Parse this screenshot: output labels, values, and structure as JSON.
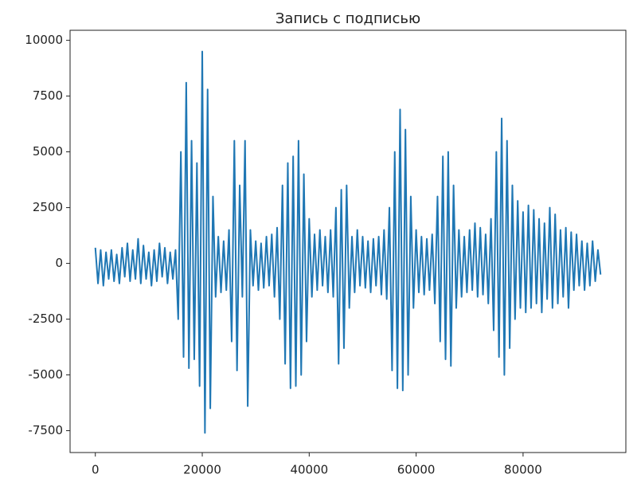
{
  "chart_data": {
    "type": "line",
    "title": "Запись с подписью",
    "x": [
      0,
      500,
      1000,
      1500,
      2000,
      2500,
      3000,
      3500,
      4000,
      4500,
      5000,
      5500,
      6000,
      6500,
      7000,
      7500,
      8000,
      8500,
      9000,
      9500,
      10000,
      10500,
      11000,
      11500,
      12000,
      12500,
      13000,
      13500,
      14000,
      14500,
      15000,
      15500,
      16000,
      16500,
      17000,
      17500,
      18000,
      18500,
      19000,
      19500,
      20000,
      20500,
      21000,
      21500,
      22000,
      22500,
      23000,
      23500,
      24000,
      24500,
      25000,
      25500,
      26000,
      26500,
      27000,
      27500,
      28000,
      28500,
      29000,
      29500,
      30000,
      30500,
      31000,
      31500,
      32000,
      32500,
      33000,
      33500,
      34000,
      34500,
      35000,
      35500,
      36000,
      36500,
      37000,
      37500,
      38000,
      38500,
      39000,
      39500,
      40000,
      40500,
      41000,
      41500,
      42000,
      42500,
      43000,
      43500,
      44000,
      44500,
      45000,
      45500,
      46000,
      46500,
      47000,
      47500,
      48000,
      48500,
      49000,
      49500,
      50000,
      50500,
      51000,
      51500,
      52000,
      52500,
      53000,
      53500,
      54000,
      54500,
      55000,
      55500,
      56000,
      56500,
      57000,
      57500,
      58000,
      58500,
      59000,
      59500,
      60000,
      60500,
      61000,
      61500,
      62000,
      62500,
      63000,
      63500,
      64000,
      64500,
      65000,
      65500,
      66000,
      66500,
      67000,
      67500,
      68000,
      68500,
      69000,
      69500,
      70000,
      70500,
      71000,
      71500,
      72000,
      72500,
      73000,
      73500,
      74000,
      74500,
      75000,
      75500,
      76000,
      76500,
      77000,
      77500,
      78000,
      78500,
      79000,
      79500,
      80000,
      80500,
      81000,
      81500,
      82000,
      82500,
      83000,
      83500,
      84000,
      84500,
      85000,
      85500,
      86000,
      86500,
      87000,
      87500,
      88000,
      88500,
      89000,
      89500,
      90000,
      90500,
      91000,
      91500,
      92000,
      92500,
      93000,
      93500,
      94000,
      94500
    ],
    "series": [
      {
        "color": "#1f77b4",
        "values": [
          700,
          -900,
          600,
          -1000,
          500,
          -700,
          600,
          -800,
          400,
          -900,
          700,
          -600,
          900,
          -800,
          600,
          -700,
          1100,
          -900,
          800,
          -700,
          500,
          -1000,
          600,
          -800,
          900,
          -600,
          700,
          -900,
          500,
          -700,
          600,
          -2500,
          5000,
          -4200,
          8100,
          -4700,
          5500,
          -4300,
          4500,
          -5500,
          9500,
          -7600,
          7800,
          -6500,
          3000,
          -1500,
          1200,
          -1300,
          1000,
          -1200,
          1500,
          -3500,
          5500,
          -4800,
          3500,
          -1500,
          5500,
          -6400,
          1500,
          -1000,
          1000,
          -1200,
          900,
          -1100,
          1200,
          -1000,
          1300,
          -1500,
          1600,
          -2500,
          3500,
          -4500,
          4500,
          -5600,
          4800,
          -5500,
          5500,
          -5000,
          4000,
          -3500,
          2000,
          -1500,
          1300,
          -1200,
          1500,
          -1000,
          1200,
          -1300,
          1500,
          -1500,
          2500,
          -4500,
          3300,
          -3800,
          3500,
          -2000,
          1200,
          -1300,
          1500,
          -1000,
          1200,
          -1100,
          1000,
          -1300,
          1100,
          -1000,
          1200,
          -1400,
          1500,
          -1600,
          2500,
          -4800,
          5000,
          -5600,
          6900,
          -5700,
          6000,
          -5000,
          3000,
          -2000,
          1500,
          -1300,
          1200,
          -1400,
          1100,
          -1200,
          1300,
          -1800,
          3000,
          -3500,
          4800,
          -4300,
          5000,
          -4600,
          3500,
          -2000,
          1500,
          -1500,
          1200,
          -1300,
          1500,
          -1200,
          1800,
          -1500,
          1600,
          -1400,
          1300,
          -1800,
          2000,
          -3000,
          5000,
          -4200,
          6500,
          -5000,
          5500,
          -3800,
          3500,
          -2500,
          2800,
          -2000,
          2300,
          -2200,
          2600,
          -2000,
          2400,
          -1800,
          2000,
          -2200,
          1800,
          -1600,
          2500,
          -2000,
          2200,
          -1800,
          1500,
          -1500,
          1600,
          -2000,
          1400,
          -1200,
          1300,
          -1000,
          1000,
          -1200,
          900,
          -1000,
          1000,
          -800,
          600,
          -500
        ]
      }
    ],
    "xlim": [
      -4725,
      99225
    ],
    "ylim": [
      -8480,
      10450
    ],
    "xticks": [
      0,
      20000,
      40000,
      60000,
      80000
    ],
    "yticks": [
      -7500,
      -5000,
      -2500,
      0,
      2500,
      5000,
      7500,
      10000
    ]
  }
}
